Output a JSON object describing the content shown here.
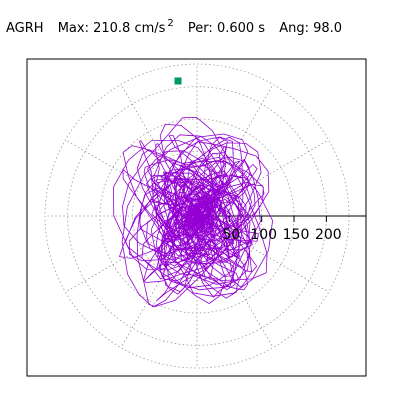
{
  "header": {
    "station": "AGRH",
    "max_label": "Max:",
    "max_value": "210.8 cm/s",
    "max_exponent": "2",
    "per_label": "Per:",
    "per_value": "0.600 s",
    "ang_label": "Ang:",
    "ang_value": "98.0"
  },
  "colors": {
    "trace": "#9400d3",
    "marker": "#009966",
    "frame": "#000000",
    "grid": "#999999"
  },
  "chart_data": {
    "type": "polar-orbit",
    "title": "",
    "radial_ticks": [
      "50",
      "100",
      "150",
      "200"
    ],
    "radial_tick_values": [
      50,
      100,
      150,
      200
    ],
    "rmax": 235,
    "peak_marker": {
      "angle_deg": 98.0,
      "radius": 210.8
    },
    "units": "cm/s2",
    "grid": true
  }
}
